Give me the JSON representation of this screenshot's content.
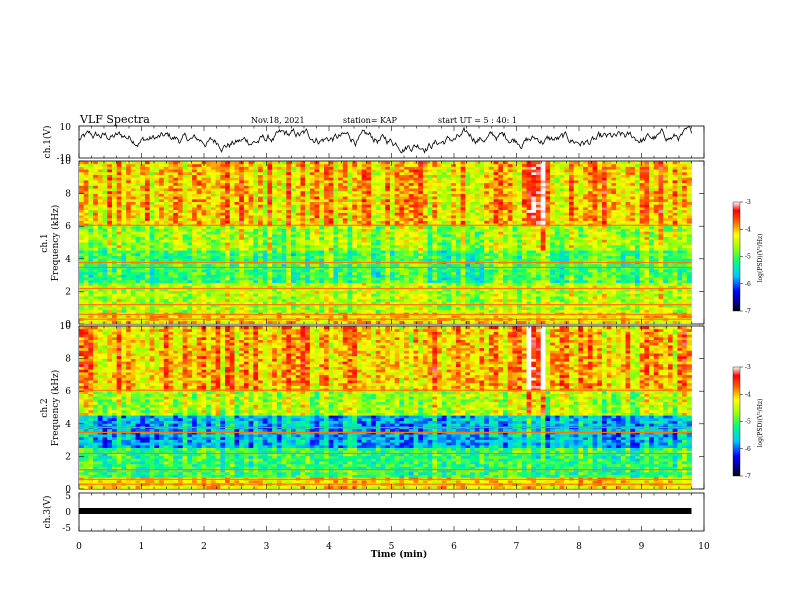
{
  "header": {
    "title": "VLF Spectra",
    "date": "Nov.18, 2021",
    "station": "station= KAP",
    "start": "start  UT =  5 : 40: 1"
  },
  "chart_data": [
    {
      "type": "line",
      "ylabel": "ch.1(V)",
      "ylim": [
        -10,
        10
      ],
      "yticks": [
        "10",
        "-10"
      ],
      "xlim": [
        0,
        10
      ],
      "description_values": {
        "baseline": 0,
        "amplitude_range": [
          -6,
          8
        ]
      }
    },
    {
      "type": "heatmap",
      "ylabel": "ch.1\nFrequency (kHz)",
      "ylabel_lines": [
        "ch.1",
        "Frequency  (kHz)"
      ],
      "ylim": [
        0,
        10
      ],
      "yticks": [
        "0",
        "2",
        "4",
        "6",
        "8",
        "10"
      ],
      "xlim": [
        0,
        9.8
      ],
      "colorbar": {
        "label": "log(PSD)(V²/Hz)",
        "ticks": [
          "-3",
          "-4",
          "-5",
          "-6",
          "-7"
        ],
        "range": [
          -7,
          -3
        ]
      }
    },
    {
      "type": "heatmap",
      "ylabel_lines": [
        "ch.2",
        "Frequency  (kHz)"
      ],
      "ylim": [
        0,
        10
      ],
      "yticks": [
        "0",
        "2",
        "4",
        "6",
        "8",
        "10"
      ],
      "xlim": [
        0,
        9.8
      ],
      "colorbar": {
        "label": "log(PSD)(V²/Hz)",
        "ticks": [
          "-3",
          "-4",
          "-5",
          "-6",
          "-7"
        ],
        "range": [
          -7,
          -3
        ]
      }
    },
    {
      "type": "line",
      "ylabel": "ch.3(V)",
      "ylim": [
        -5,
        5
      ],
      "yticks": [
        "5",
        "0",
        "-5"
      ],
      "values_constant": -1
    }
  ],
  "xaxis": {
    "label": "Time  (min)",
    "ticks": [
      "0",
      "1",
      "2",
      "3",
      "4",
      "5",
      "6",
      "7",
      "8",
      "9",
      "10"
    ]
  }
}
